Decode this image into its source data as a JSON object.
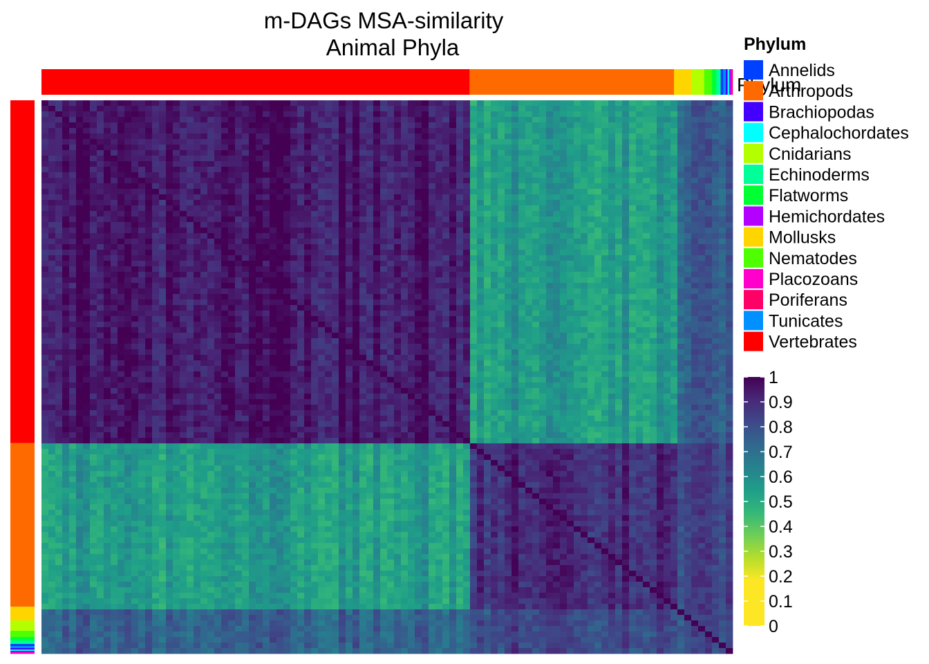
{
  "chart_data": {
    "type": "heatmap",
    "title": "m-DAGs MSA-similarity",
    "subtitle": "Animal  Phyla",
    "annotation_label": "Phylum",
    "legend_title": "Phylum",
    "color_scale": {
      "min": 0,
      "max": 1,
      "ticks": [
        1,
        0.9,
        0.8,
        0.7,
        0.6,
        0.5,
        0.4,
        0.3,
        0.2,
        0.1,
        0
      ],
      "colors": [
        "#fde725",
        "#fde725",
        "#fde725",
        "#b5de2b",
        "#6ece58",
        "#35b779",
        "#1f9e89",
        "#26828e",
        "#31688e",
        "#3e4989",
        "#482878",
        "#440154"
      ]
    },
    "categories": [
      {
        "name": "Annelids",
        "color": "#0040ff"
      },
      {
        "name": "Arthropods",
        "color": "#ff6a00"
      },
      {
        "name": "Brachiopodas",
        "color": "#4400ff"
      },
      {
        "name": "Cephalochordates",
        "color": "#00ffff"
      },
      {
        "name": "Cnidarians",
        "color": "#b3ff00"
      },
      {
        "name": "Echinoderms",
        "color": "#00ff99"
      },
      {
        "name": "Flatworms",
        "color": "#00ff33"
      },
      {
        "name": "Hemichordates",
        "color": "#b300ff"
      },
      {
        "name": "Mollusks",
        "color": "#ffd500"
      },
      {
        "name": "Nematodes",
        "color": "#4dff00"
      },
      {
        "name": "Placozoans",
        "color": "#ff00cc"
      },
      {
        "name": "Poriferans",
        "color": "#ff0066"
      },
      {
        "name": "Tunicates",
        "color": "#0090ff"
      },
      {
        "name": "Vertebrates",
        "color": "#ff0000"
      }
    ],
    "group_order": [
      "Vertebrates",
      "Arthropods",
      "Mollusks",
      "Cnidarians",
      "Nematodes",
      "Flatworms",
      "Echinoderms",
      "Annelids",
      "Tunicates",
      "Brachiopodas",
      "Cephalochordates",
      "Hemichordates",
      "Placozoans",
      "Poriferans"
    ],
    "group_sizes": [
      496,
      237,
      20,
      15,
      9,
      5,
      5,
      3,
      3,
      2,
      2,
      2,
      1,
      1
    ],
    "block_similarity": {
      "Vertebrates-Vertebrates": 0.95,
      "Arthropods-Arthropods": 0.9,
      "Vertebrates-Arthropods": 0.55,
      "Vertebrates-Other": 0.75,
      "Arthropods-Other": 0.82,
      "Other-Other": 0.8
    }
  }
}
